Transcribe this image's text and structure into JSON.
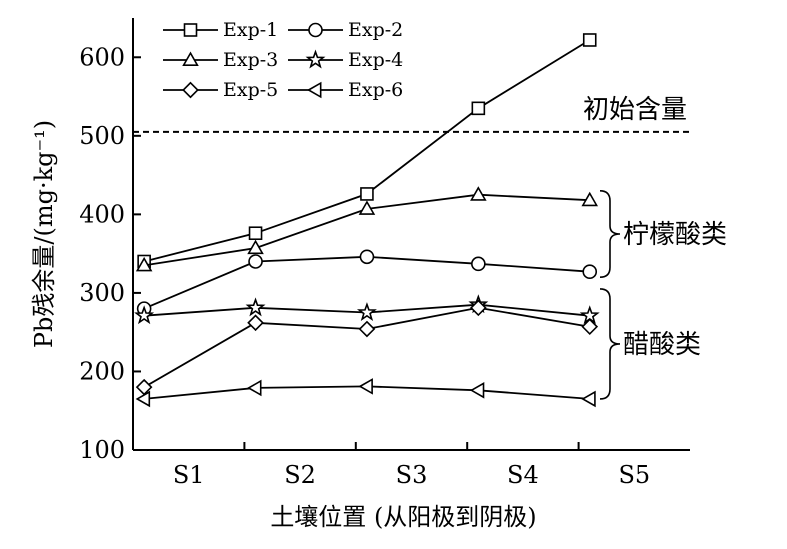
{
  "chart_data": {
    "type": "line",
    "x_categories": [
      "S1",
      "S2",
      "S3",
      "S4",
      "S5"
    ],
    "x_positions": [
      1,
      2,
      3,
      4,
      5
    ],
    "xlim": [
      0.5,
      5.5
    ],
    "ylim": [
      100,
      650
    ],
    "yticks": [
      100,
      200,
      300,
      400,
      500,
      600
    ],
    "xlabel": "土壤位置 (从阳极到阴极)",
    "ylabel": "Pb残余量/(mg·kg⁻¹)",
    "legend_position": "top-left",
    "grid": false,
    "series": [
      {
        "name": "Exp-1",
        "marker": "square",
        "x": [
          0.6,
          1.6,
          2.6,
          3.6,
          4.6
        ],
        "y": [
          340,
          376,
          426,
          535,
          622
        ]
      },
      {
        "name": "Exp-2",
        "marker": "circle",
        "x": [
          0.6,
          1.6,
          2.6,
          3.6,
          4.6
        ],
        "y": [
          280,
          340,
          346,
          337,
          327
        ]
      },
      {
        "name": "Exp-3",
        "marker": "triangle-up",
        "x": [
          0.6,
          1.6,
          2.6,
          3.6,
          4.6
        ],
        "y": [
          335,
          357,
          407,
          425,
          418
        ]
      },
      {
        "name": "Exp-4",
        "marker": "star",
        "x": [
          0.6,
          1.6,
          2.6,
          3.6,
          4.6
        ],
        "y": [
          271,
          281,
          275,
          285,
          271
        ]
      },
      {
        "name": "Exp-5",
        "marker": "diamond",
        "x": [
          0.6,
          1.6,
          2.6,
          3.6,
          4.6
        ],
        "y": [
          180,
          262,
          254,
          281,
          257
        ]
      },
      {
        "name": "Exp-6",
        "marker": "triangle-left",
        "x": [
          0.6,
          1.6,
          2.6,
          3.6,
          4.6
        ],
        "y": [
          165,
          179,
          181,
          176,
          165
        ]
      }
    ],
    "reference_line": {
      "y": 505,
      "label": "初始含量",
      "style": "dashed"
    },
    "group_labels": [
      {
        "label": "柠檬酸类",
        "y_range": [
          320,
          430
        ]
      },
      {
        "label": "醋酸类",
        "y_range": [
          165,
          305
        ]
      }
    ]
  }
}
